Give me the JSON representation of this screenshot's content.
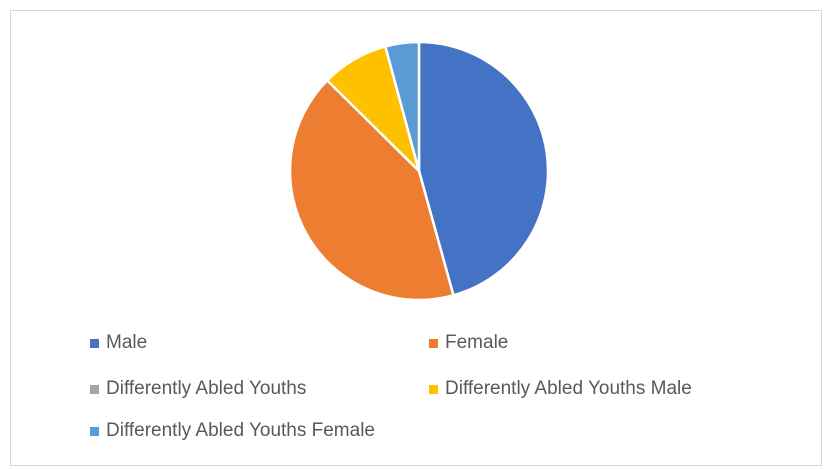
{
  "chart_data": {
    "type": "pie",
    "title": "",
    "legend_position": "bottom",
    "series": [
      {
        "categories": [
          "Male",
          "Female",
          "Differently Abled Youths",
          "Differently Abled Youths Male",
          "Differently Abled Youths Female"
        ],
        "values": [
          45.7,
          41.7,
          0,
          8.4,
          4.2
        ]
      }
    ],
    "colors": [
      "#4472C4",
      "#ED7D31",
      "#A5A5A5",
      "#FFC000",
      "#5B9BD5"
    ]
  }
}
